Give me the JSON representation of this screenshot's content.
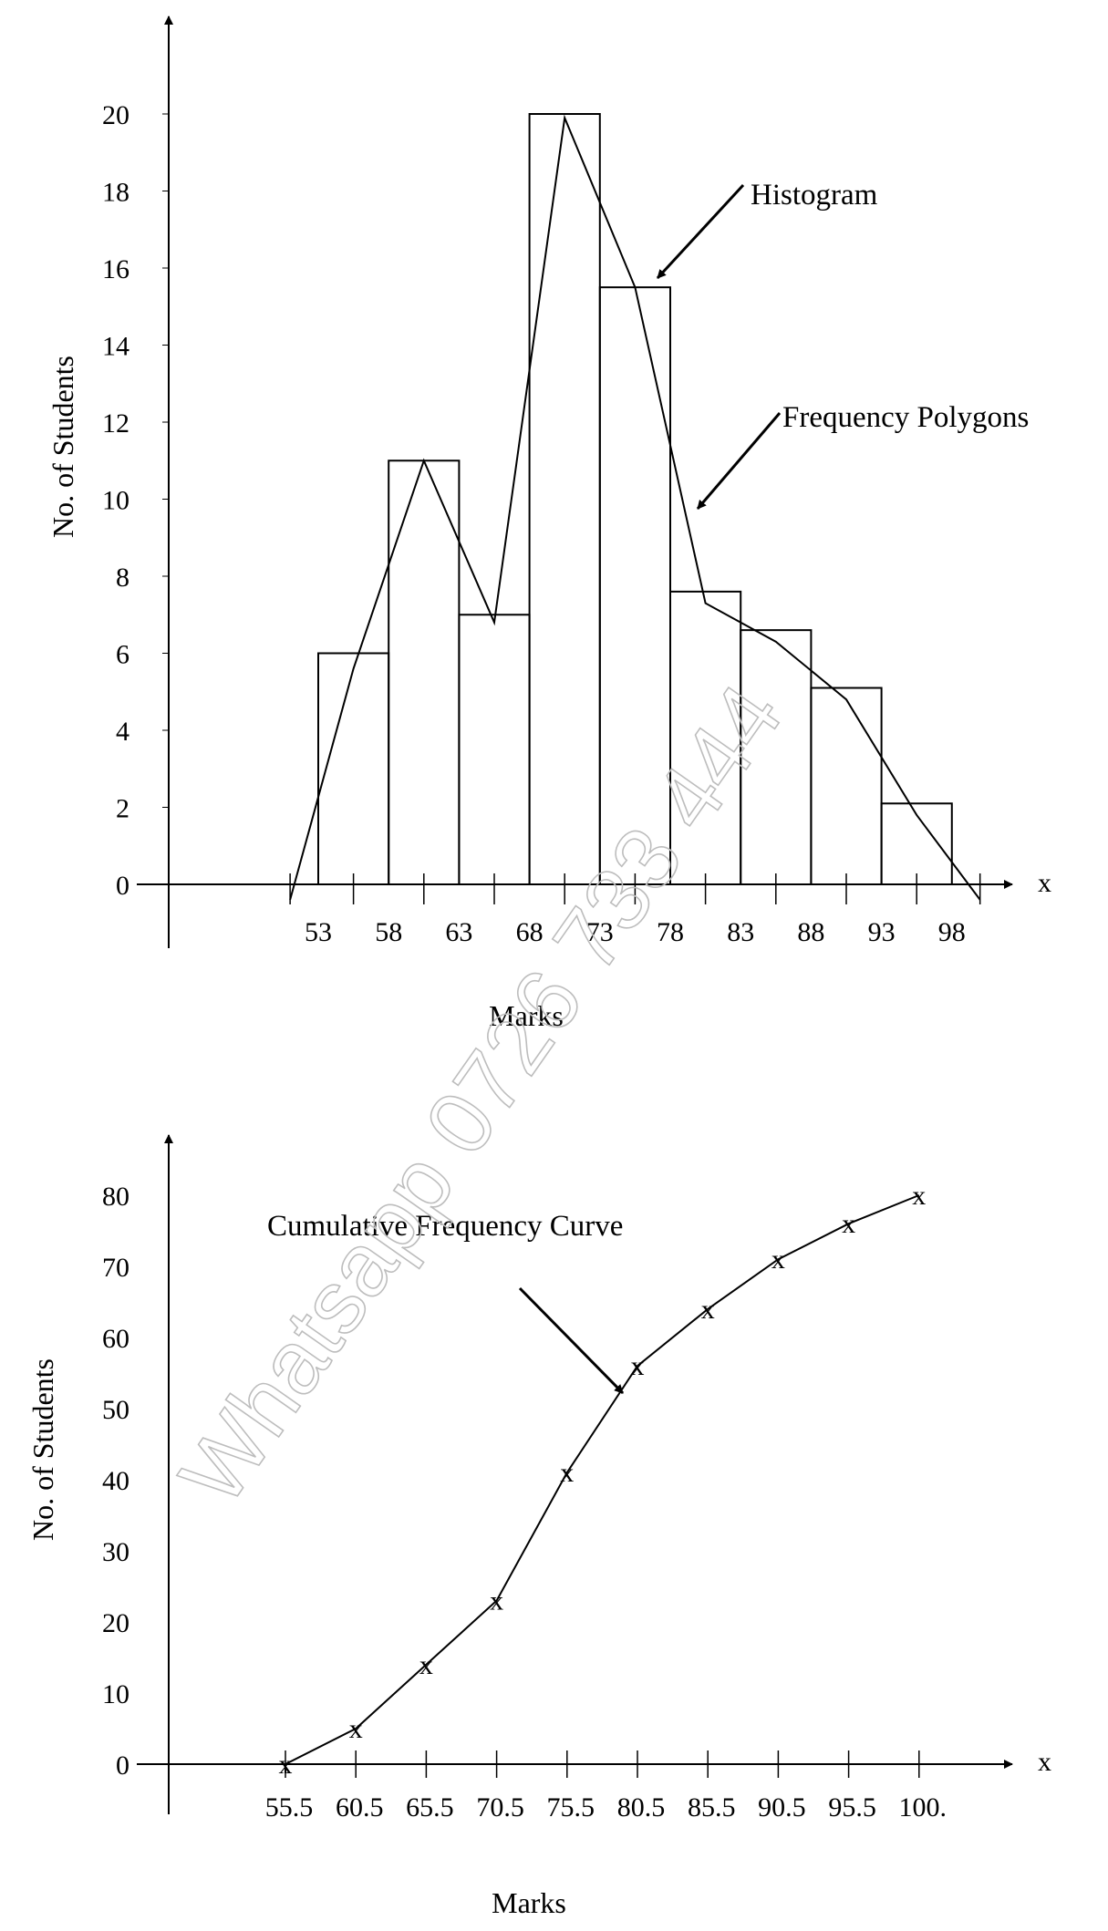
{
  "watermark": "Whatsapp 0726 733 444",
  "chart_data": [
    {
      "type": "bar",
      "title": "",
      "xlabel": "Marks",
      "ylabel": "No. of Students",
      "x_axis_end_label": "x",
      "ylim": [
        0,
        20
      ],
      "yticks": [
        "0",
        "2",
        "4",
        "6",
        "8",
        "10",
        "12",
        "14",
        "16",
        "18",
        "20"
      ],
      "xticks": [
        "53",
        "58",
        "63",
        "68",
        "73",
        "78",
        "83",
        "88",
        "93",
        "98"
      ],
      "bins": [
        {
          "from": 53,
          "to": 58,
          "value": 6
        },
        {
          "from": 58,
          "to": 63,
          "value": 11
        },
        {
          "from": 63,
          "to": 68,
          "value": 7
        },
        {
          "from": 68,
          "to": 73,
          "value": 20
        },
        {
          "from": 73,
          "to": 78,
          "value": 15.5
        },
        {
          "from": 78,
          "to": 83,
          "value": 7.6
        },
        {
          "from": 83,
          "to": 88,
          "value": 6.6
        },
        {
          "from": 88,
          "to": 93,
          "value": 5.1
        },
        {
          "from": 93,
          "to": 98,
          "value": 2.1
        }
      ],
      "polygon": {
        "x": [
          51,
          55.5,
          60.5,
          65.5,
          70.5,
          75.5,
          80.5,
          85.5,
          90.5,
          95.5,
          100
        ],
        "y": [
          -0.4,
          5.6,
          11,
          6.8,
          19.9,
          15.5,
          7.3,
          6.3,
          4.8,
          1.8,
          -0.4
        ]
      },
      "annotations": [
        "Histogram",
        "Frequency Polygons"
      ]
    },
    {
      "type": "line",
      "title": "",
      "xlabel": "Marks",
      "ylabel": "No. of Students",
      "x_axis_end_label": "x",
      "ylim": [
        0,
        80
      ],
      "yticks": [
        "0",
        "10",
        "20",
        "30",
        "40",
        "50",
        "60",
        "70",
        "80"
      ],
      "xticks": [
        "55.5",
        "60.5",
        "65.5",
        "70.5",
        "75.5",
        "80.5",
        "85.5",
        "90.5",
        "95.5",
        "100."
      ],
      "x": [
        55.5,
        60.5,
        65.5,
        70.5,
        75.5,
        80.5,
        85.5,
        90.5,
        95.5,
        100.5
      ],
      "y": [
        0,
        5,
        14,
        23,
        41,
        56,
        64,
        71,
        76,
        80
      ],
      "marker": "x",
      "annotation": "Cumulative Frequency Curve"
    }
  ]
}
